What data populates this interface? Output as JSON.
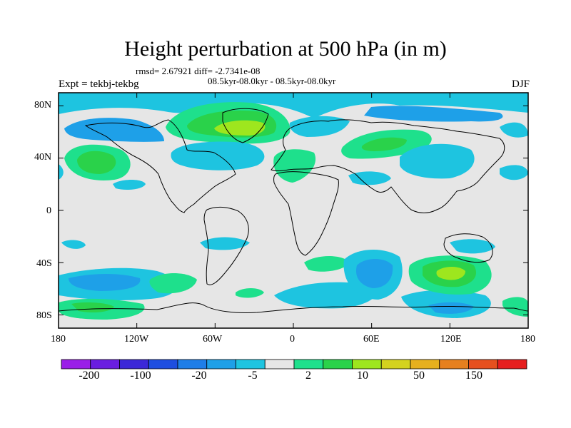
{
  "title": "Height perturbation at 500 hPa (in m)",
  "stats_line": "rmsd= 2.67921  diff= -2.7341e-08",
  "experiment": "Expt = tekbj-tekbg",
  "comparison": "08.5kyr-08.0kyr - 08.5kyr-08.0kyr",
  "season": "DJF",
  "y_ticks": [
    "80N",
    "40N",
    "0",
    "40S",
    "80S"
  ],
  "x_ticks": [
    "180",
    "120W",
    "60W",
    "0",
    "60E",
    "120E",
    "180"
  ],
  "colorbar": {
    "labels": [
      "-200",
      "-100",
      "-20",
      "-5",
      "2",
      "10",
      "50",
      "150"
    ],
    "colors": [
      "#9a1ee8",
      "#6a1ee0",
      "#3c28d8",
      "#1e4ee0",
      "#1e7ee8",
      "#1ea0e8",
      "#1ec4e0",
      "#e6e6e6",
      "#1ee08c",
      "#2ad24a",
      "#9ee61e",
      "#d4d21e",
      "#e6b01e",
      "#e6801e",
      "#e6501e",
      "#e61e1e"
    ]
  },
  "colors": {
    "background_zero": "#e6e6e6",
    "neg_light": "#1ec4e0",
    "neg_mid": "#1ea0e8",
    "neg_strong": "#1e7ee8",
    "pos_light": "#1ee08c",
    "pos_mid": "#2ad24a",
    "pos_strong": "#9ee61e"
  }
}
